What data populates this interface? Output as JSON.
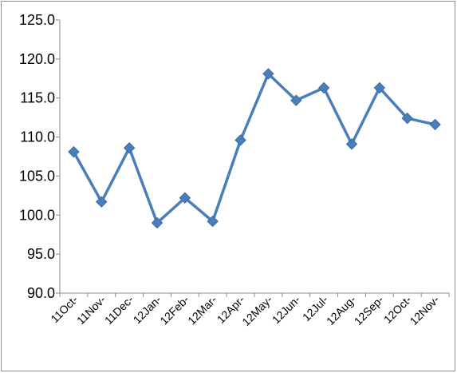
{
  "chart_data": {
    "type": "line",
    "categories": [
      "11Oct-",
      "11Nov-",
      "11Dec-",
      "12Jan-",
      "12Feb-",
      "12Mar-",
      "12Apr-",
      "12May-",
      "12Jun-",
      "12Jul-",
      "12Aug-",
      "12Sep-",
      "12Oct-",
      "12Nov-"
    ],
    "series": [
      {
        "values": [
          108.1,
          101.7,
          108.6,
          99.0,
          102.2,
          99.2,
          109.6,
          118.1,
          114.7,
          116.3,
          109.1,
          116.3,
          112.4,
          111.6
        ],
        "color": "#4a7ebb"
      }
    ],
    "ylim": [
      90,
      125
    ],
    "yticks": [
      "90.0",
      "95.0",
      "100.0",
      "105.0",
      "110.0",
      "115.0",
      "120.0",
      "125.0"
    ],
    "grid": false,
    "legend": "none",
    "marker": "diamond"
  }
}
